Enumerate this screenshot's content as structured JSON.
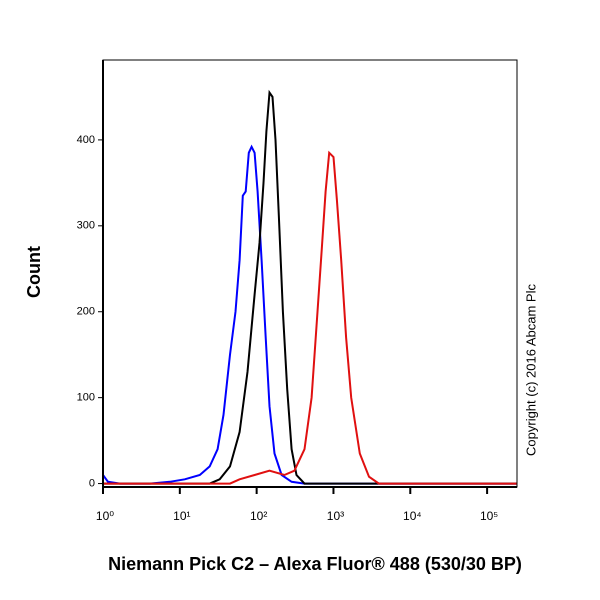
{
  "chart_data": {
    "type": "line",
    "x_label": "Niemann Pick C2 – Alexa Fluor® 488 (530/30 BP)",
    "y_label": "Count",
    "annotation": "Copyright (c) 2016 Abcam Plc",
    "log_x": true,
    "xlim": [
      1,
      245000
    ],
    "ylim": [
      -4,
      493
    ],
    "xticks": [
      {
        "value": 1,
        "label": "10⁰"
      },
      {
        "value": 10,
        "label": "10¹"
      },
      {
        "value": 100,
        "label": "10²"
      },
      {
        "value": 1000,
        "label": "10³"
      },
      {
        "value": 10000,
        "label": "10⁴"
      },
      {
        "value": 100000,
        "label": "10⁵"
      }
    ],
    "yticks": [
      0,
      100,
      200,
      300,
      400
    ],
    "series": [
      {
        "color": "#0000ff",
        "x": [
          1,
          1.16,
          1.66,
          4.08,
          7.4,
          11.6,
          18.2,
          24.5,
          31,
          37,
          45,
          53,
          60,
          66,
          72,
          79,
          86,
          94,
          103,
          116,
          131,
          147,
          171,
          211,
          285,
          418,
          245000
        ],
        "values": [
          10,
          2,
          0,
          0,
          2,
          5,
          10,
          20,
          40,
          80,
          150,
          200,
          260,
          335,
          340,
          385,
          392,
          385,
          340,
          260,
          170,
          90,
          35,
          10,
          2,
          0,
          0
        ]
      },
      {
        "color": "#000000",
        "x": [
          1,
          24.5,
          33,
          45,
          60,
          76,
          94,
          109,
          123,
          134,
          147,
          161,
          176,
          195,
          220,
          250,
          285,
          330,
          420,
          245000
        ],
        "values": [
          0,
          0,
          5,
          20,
          60,
          130,
          220,
          280,
          350,
          410,
          455,
          450,
          400,
          310,
          200,
          110,
          40,
          10,
          0,
          0
        ]
      },
      {
        "color": "#e01010",
        "x": [
          1,
          45,
          60,
          94,
          147,
          230,
          310,
          420,
          520,
          620,
          700,
          790,
          880,
          1000,
          1110,
          1260,
          1460,
          1700,
          2200,
          2900,
          3900,
          245000
        ],
        "values": [
          0,
          0,
          5,
          10,
          15,
          10,
          15,
          40,
          100,
          200,
          270,
          340,
          385,
          380,
          330,
          260,
          170,
          100,
          35,
          8,
          0,
          0
        ]
      }
    ]
  }
}
